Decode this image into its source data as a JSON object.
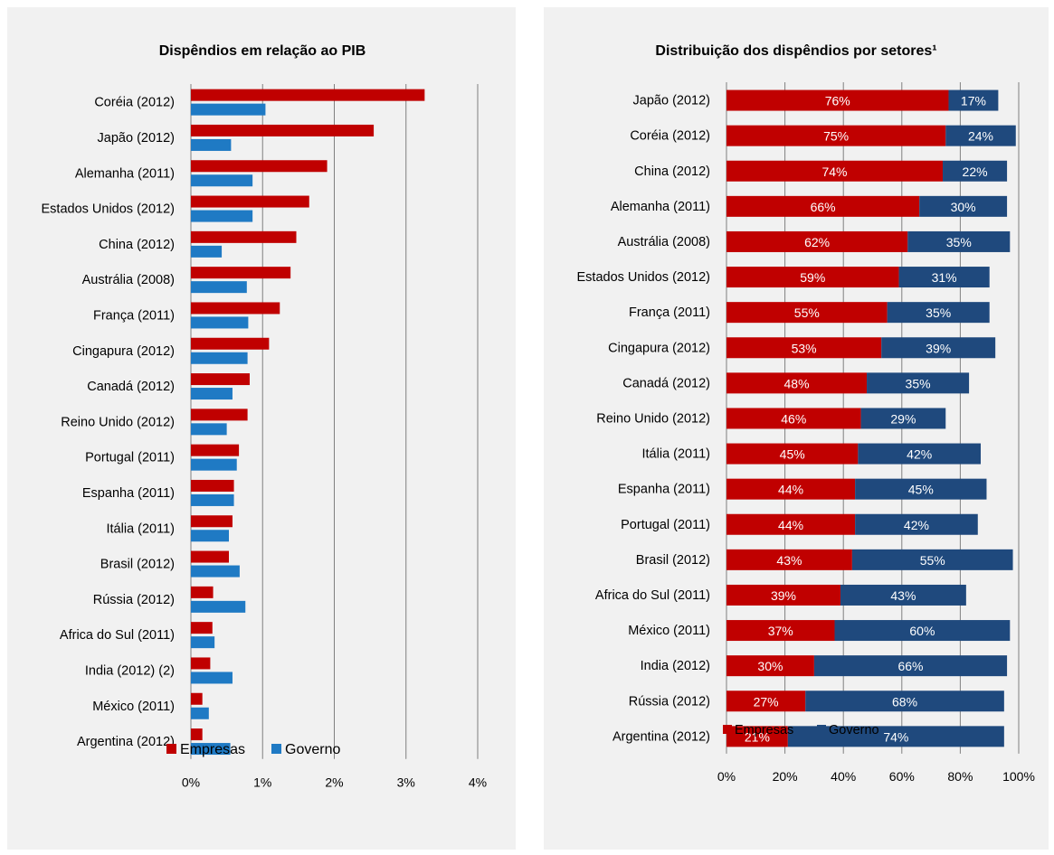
{
  "colors": {
    "empresas": "#c00000",
    "governo": "#1f7ac4",
    "governo_dark": "#1f497d",
    "grid": "#808080"
  },
  "chart_data": [
    {
      "type": "bar",
      "orientation": "horizontal",
      "title": "Dispêndios em relação ao PIB",
      "categories": [
        "Coréia (2012)",
        "Japão (2012)",
        "Alemanha (2011)",
        "Estados Unidos (2012)",
        "China (2012)",
        "Austrália (2008)",
        "França (2011)",
        "Cingapura (2012)",
        "Canadá (2012)",
        "Reino Unido (2012)",
        "Portugal (2011)",
        "Espanha (2011)",
        "Itália (2011)",
        "Brasil (2012)",
        "Rússia (2012)",
        "Africa do Sul (2011)",
        "India (2012) (2)",
        "México (2011)",
        "Argentina (2012)"
      ],
      "series": [
        {
          "name": "Empresas",
          "values": [
            3.26,
            2.55,
            1.9,
            1.65,
            1.47,
            1.39,
            1.24,
            1.09,
            0.82,
            0.79,
            0.67,
            0.6,
            0.58,
            0.53,
            0.31,
            0.3,
            0.27,
            0.16,
            0.16
          ]
        },
        {
          "name": "Governo",
          "values": [
            1.04,
            0.56,
            0.86,
            0.86,
            0.43,
            0.78,
            0.8,
            0.79,
            0.58,
            0.5,
            0.64,
            0.6,
            0.53,
            0.68,
            0.76,
            0.33,
            0.58,
            0.25,
            0.55
          ]
        }
      ],
      "xlim": [
        0,
        4
      ],
      "xticks": [
        "0%",
        "1%",
        "2%",
        "3%",
        "4%"
      ],
      "grid": "vertical",
      "legend": "bottom"
    },
    {
      "type": "bar",
      "orientation": "horizontal",
      "stacked": true,
      "title": "Distribuição dos dispêndios por setores¹",
      "categories": [
        "Japão (2012)",
        "Coréia (2012)",
        "China (2012)",
        "Alemanha (2011)",
        "Austrália (2008)",
        "Estados Unidos (2012)",
        "França (2011)",
        "Cingapura (2012)",
        "Canadá (2012)",
        "Reino Unido (2012)",
        "Itália (2011)",
        "Espanha (2011)",
        "Portugal (2011)",
        "Brasil (2012)",
        "Africa do Sul (2011)",
        "México (2011)",
        "India (2012)",
        "Rússia (2012)",
        "Argentina (2012)"
      ],
      "series": [
        {
          "name": "Empresas",
          "values": [
            76,
            75,
            74,
            66,
            62,
            59,
            55,
            53,
            48,
            46,
            45,
            44,
            44,
            43,
            39,
            37,
            30,
            27,
            21
          ]
        },
        {
          "name": "Governo",
          "values": [
            17,
            24,
            22,
            30,
            35,
            31,
            35,
            39,
            35,
            29,
            42,
            45,
            42,
            55,
            43,
            60,
            66,
            68,
            74
          ]
        }
      ],
      "data_labels": [
        "76%",
        "17%",
        "75%",
        "24%",
        "74%",
        "22%",
        "66%",
        "30%",
        "62%",
        "35%",
        "59%",
        "31%",
        "55%",
        "35%",
        "53%",
        "39%",
        "48%",
        "35%",
        "46%",
        "29%",
        "45%",
        "42%",
        "44%",
        "45%",
        "44%",
        "42%",
        "43%",
        "55%",
        "39%",
        "43%",
        "37%",
        "60%",
        "30%",
        "66%",
        "27%",
        "68%",
        "21%",
        "74%"
      ],
      "xlim": [
        0,
        100
      ],
      "xticks": [
        "0%",
        "20%",
        "40%",
        "60%",
        "80%",
        "100%"
      ],
      "grid": "vertical",
      "legend": "bottom"
    }
  ]
}
